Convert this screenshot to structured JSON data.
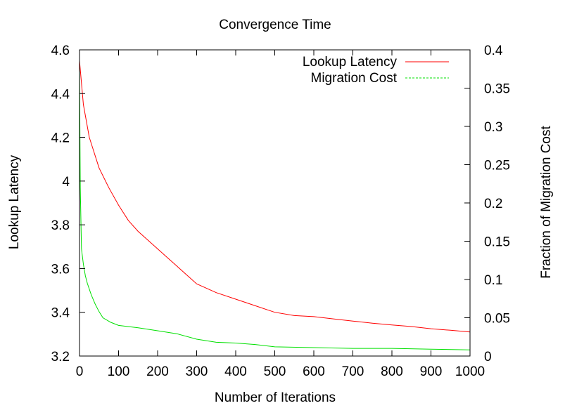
{
  "chart_data": {
    "type": "line",
    "title": "Convergence Time",
    "xlabel": "Number of Iterations",
    "ylabel": "Lookup Latency",
    "y2label": "Fraction of Migration Cost",
    "xlim": [
      0,
      1000
    ],
    "ylim": [
      3.2,
      4.6
    ],
    "y2lim": [
      0,
      0.4
    ],
    "x_ticks": [
      "0",
      "100",
      "200",
      "300",
      "400",
      "500",
      "600",
      "700",
      "800",
      "900",
      "1000"
    ],
    "y_ticks": [
      "3.2",
      "3.4",
      "3.6",
      "3.8",
      "4",
      "4.2",
      "4.4",
      "4.6"
    ],
    "y2_ticks": [
      "0",
      "0.05",
      "0.1",
      "0.15",
      "0.2",
      "0.25",
      "0.3",
      "0.35",
      "0.4"
    ],
    "grid": false,
    "legend_position": "top-right",
    "series": [
      {
        "name": "Lookup Latency",
        "axis": "left",
        "color": "#ff0000",
        "x": [
          0,
          10,
          25,
          50,
          75,
          100,
          125,
          150,
          175,
          200,
          225,
          250,
          300,
          350,
          400,
          450,
          500,
          550,
          600,
          650,
          700,
          750,
          800,
          850,
          900,
          950,
          1000
        ],
        "y": [
          4.55,
          4.35,
          4.2,
          4.06,
          3.97,
          3.89,
          3.82,
          3.77,
          3.73,
          3.69,
          3.65,
          3.61,
          3.53,
          3.49,
          3.46,
          3.43,
          3.4,
          3.385,
          3.38,
          3.37,
          3.36,
          3.35,
          3.342,
          3.335,
          3.325,
          3.318,
          3.31
        ]
      },
      {
        "name": "Migration Cost",
        "axis": "right",
        "color": "#00e000",
        "x": [
          0,
          2,
          5,
          10,
          15,
          20,
          30,
          40,
          50,
          60,
          80,
          100,
          150,
          200,
          250,
          300,
          350,
          400,
          450,
          500,
          600,
          700,
          800,
          900,
          1000
        ],
        "y": [
          0.38,
          0.22,
          0.14,
          0.12,
          0.105,
          0.095,
          0.08,
          0.068,
          0.058,
          0.05,
          0.044,
          0.04,
          0.037,
          0.033,
          0.029,
          0.022,
          0.018,
          0.017,
          0.015,
          0.012,
          0.011,
          0.01,
          0.01,
          0.009,
          0.008
        ]
      }
    ]
  }
}
